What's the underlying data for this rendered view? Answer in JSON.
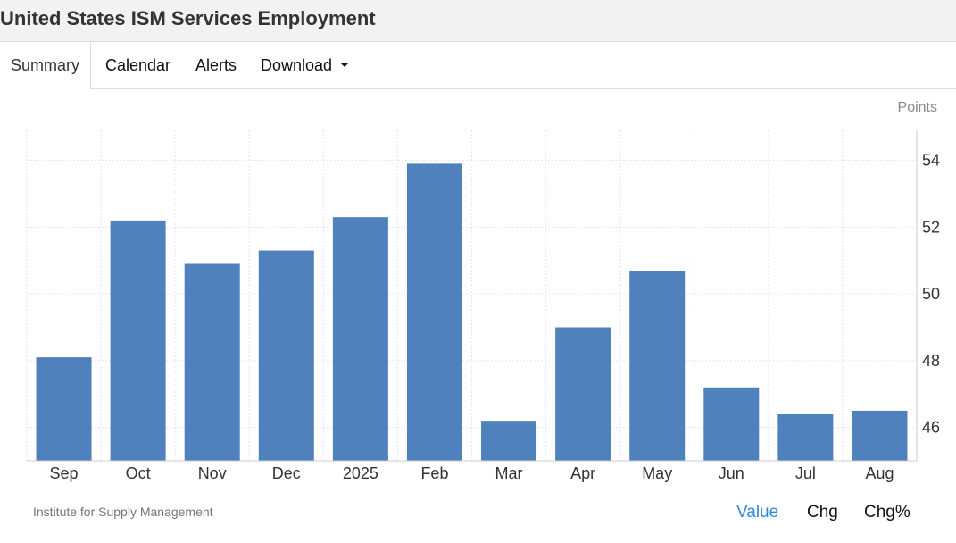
{
  "header": {
    "title": "United States ISM Services Employment"
  },
  "tabs": [
    {
      "label": "Summary"
    },
    {
      "label": "Calendar"
    },
    {
      "label": "Alerts"
    },
    {
      "label": "Download"
    }
  ],
  "footer": {
    "source": "Institute for Supply Management",
    "toggles": [
      {
        "label": "Value"
      },
      {
        "label": "Chg"
      },
      {
        "label": "Chg%"
      }
    ]
  },
  "colors": {
    "bar": "#4f81bd",
    "active_toggle": "#2b8ad9"
  },
  "chart_data": {
    "type": "bar",
    "ylabel": "Points",
    "categories": [
      "Sep",
      "Oct",
      "Nov",
      "Dec",
      "2025",
      "Feb",
      "Mar",
      "Apr",
      "May",
      "Jun",
      "Jul",
      "Aug"
    ],
    "values": [
      48.1,
      52.2,
      50.9,
      51.3,
      52.3,
      53.9,
      46.2,
      49.0,
      50.7,
      47.2,
      46.4,
      46.5
    ],
    "ylim": [
      45.0,
      54.9
    ],
    "yticks": [
      46,
      48,
      50,
      52,
      54
    ],
    "grid": true,
    "y_axis_side": "right"
  }
}
